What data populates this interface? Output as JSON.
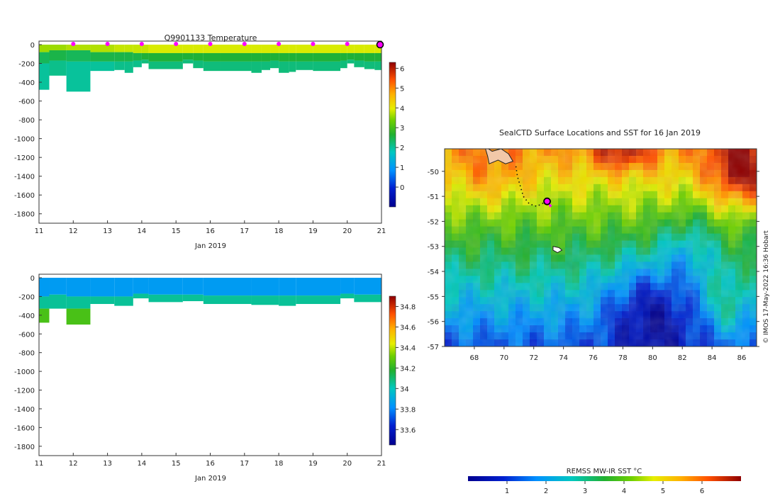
{
  "chart_data": [
    {
      "type": "heatmap",
      "title": "Q9901133  Temperature",
      "xlabel": "Jan 2019",
      "ylabel": "",
      "x_ticks": [
        "11",
        "12",
        "13",
        "14",
        "15",
        "16",
        "17",
        "18",
        "19",
        "20",
        "21"
      ],
      "y_ticks": [
        "0",
        "-200",
        "-400",
        "-600",
        "-800",
        "-1000",
        "-1200",
        "-1400",
        "-1600",
        "-1800"
      ],
      "xlim": [
        11,
        21
      ],
      "ylim": [
        -1900,
        0
      ],
      "colorbar": {
        "ticks": [
          "0",
          "1",
          "2",
          "3",
          "4",
          "5",
          "6"
        ],
        "range": [
          -1,
          6.3
        ]
      },
      "profile_times": [
        12,
        13,
        14,
        15,
        16,
        17,
        18,
        19,
        20
      ],
      "profiles": [
        {
          "t0": 11.0,
          "t1": 11.3,
          "depth": -480,
          "layers": [
            [
              0,
              -80,
              3.6
            ],
            [
              -80,
              -200,
              2.4
            ],
            [
              -200,
              -480,
              2.0
            ]
          ]
        },
        {
          "t0": 11.3,
          "t1": 11.8,
          "depth": -330,
          "layers": [
            [
              0,
              -60,
              3.6
            ],
            [
              -60,
              -170,
              2.5
            ],
            [
              -170,
              -330,
              2.1
            ]
          ]
        },
        {
          "t0": 11.8,
          "t1": 12.5,
          "depth": -500,
          "layers": [
            [
              0,
              -60,
              3.7
            ],
            [
              -60,
              -180,
              2.4
            ],
            [
              -180,
              -500,
              2.0
            ]
          ]
        },
        {
          "t0": 12.5,
          "t1": 13.2,
          "depth": -280,
          "layers": [
            [
              0,
              -80,
              3.7
            ],
            [
              -80,
              -180,
              2.5
            ],
            [
              -180,
              -280,
              2.0
            ]
          ]
        },
        {
          "t0": 13.2,
          "t1": 13.5,
          "depth": -270,
          "layers": [
            [
              0,
              -80,
              3.8
            ],
            [
              -80,
              -180,
              2.5
            ],
            [
              -180,
              -270,
              2.1
            ]
          ]
        },
        {
          "t0": 13.5,
          "t1": 13.75,
          "depth": -300,
          "layers": [
            [
              0,
              -80,
              3.8
            ],
            [
              -80,
              -180,
              2.5
            ],
            [
              -180,
              -300,
              2.1
            ]
          ]
        },
        {
          "t0": 13.75,
          "t1": 14.0,
          "depth": -240,
          "layers": [
            [
              0,
              -90,
              3.8
            ],
            [
              -90,
              -170,
              2.5
            ],
            [
              -170,
              -240,
              2.1
            ]
          ]
        },
        {
          "t0": 14.0,
          "t1": 14.2,
          "depth": -200,
          "layers": [
            [
              0,
              -90,
              3.8
            ],
            [
              -90,
              -160,
              2.6
            ],
            [
              -160,
              -200,
              2.2
            ]
          ]
        },
        {
          "t0": 14.2,
          "t1": 15.2,
          "depth": -260,
          "layers": [
            [
              0,
              -90,
              3.9
            ],
            [
              -90,
              -180,
              2.6
            ],
            [
              -180,
              -260,
              2.2
            ]
          ]
        },
        {
          "t0": 15.2,
          "t1": 15.5,
          "depth": -200,
          "layers": [
            [
              0,
              -90,
              3.9
            ],
            [
              -90,
              -160,
              2.6
            ],
            [
              -160,
              -200,
              2.2
            ]
          ]
        },
        {
          "t0": 15.5,
          "t1": 15.8,
          "depth": -250,
          "layers": [
            [
              0,
              -90,
              3.9
            ],
            [
              -90,
              -170,
              2.6
            ],
            [
              -170,
              -250,
              2.2
            ]
          ]
        },
        {
          "t0": 15.8,
          "t1": 16.3,
          "depth": -280,
          "layers": [
            [
              0,
              -90,
              3.9
            ],
            [
              -90,
              -180,
              2.6
            ],
            [
              -180,
              -280,
              2.2
            ]
          ]
        },
        {
          "t0": 16.3,
          "t1": 17.2,
          "depth": -280,
          "layers": [
            [
              0,
              -90,
              3.9
            ],
            [
              -90,
              -180,
              2.6
            ],
            [
              -180,
              -280,
              2.2
            ]
          ]
        },
        {
          "t0": 17.2,
          "t1": 17.5,
          "depth": -300,
          "layers": [
            [
              0,
              -90,
              3.9
            ],
            [
              -90,
              -180,
              2.6
            ],
            [
              -180,
              -300,
              2.2
            ]
          ]
        },
        {
          "t0": 17.5,
          "t1": 17.75,
          "depth": -270,
          "layers": [
            [
              0,
              -90,
              3.9
            ],
            [
              -90,
              -180,
              2.6
            ],
            [
              -180,
              -270,
              2.2
            ]
          ]
        },
        {
          "t0": 17.75,
          "t1": 18.0,
          "depth": -250,
          "layers": [
            [
              0,
              -90,
              3.9
            ],
            [
              -90,
              -170,
              2.6
            ],
            [
              -170,
              -250,
              2.2
            ]
          ]
        },
        {
          "t0": 18.0,
          "t1": 18.3,
          "depth": -300,
          "layers": [
            [
              0,
              -90,
              3.9
            ],
            [
              -90,
              -180,
              2.6
            ],
            [
              -180,
              -300,
              2.2
            ]
          ]
        },
        {
          "t0": 18.3,
          "t1": 18.5,
          "depth": -290,
          "layers": [
            [
              0,
              -90,
              3.9
            ],
            [
              -90,
              -180,
              2.6
            ],
            [
              -180,
              -290,
              2.2
            ]
          ]
        },
        {
          "t0": 18.5,
          "t1": 19.0,
          "depth": -270,
          "layers": [
            [
              0,
              -90,
              3.9
            ],
            [
              -90,
              -180,
              2.6
            ],
            [
              -180,
              -270,
              2.2
            ]
          ]
        },
        {
          "t0": 19.0,
          "t1": 19.8,
          "depth": -280,
          "layers": [
            [
              0,
              -90,
              3.9
            ],
            [
              -90,
              -180,
              2.6
            ],
            [
              -180,
              -280,
              2.2
            ]
          ]
        },
        {
          "t0": 19.8,
          "t1": 20.0,
          "depth": -250,
          "layers": [
            [
              0,
              -90,
              3.9
            ],
            [
              -90,
              -170,
              2.6
            ],
            [
              -170,
              -250,
              2.2
            ]
          ]
        },
        {
          "t0": 20.0,
          "t1": 20.2,
          "depth": -200,
          "layers": [
            [
              0,
              -90,
              3.9
            ],
            [
              -90,
              -160,
              2.6
            ],
            [
              -160,
              -200,
              2.2
            ]
          ]
        },
        {
          "t0": 20.2,
          "t1": 20.5,
          "depth": -240,
          "layers": [
            [
              0,
              -90,
              3.9
            ],
            [
              -90,
              -170,
              2.6
            ],
            [
              -170,
              -240,
              2.2
            ]
          ]
        },
        {
          "t0": 20.5,
          "t1": 20.8,
          "depth": -260,
          "layers": [
            [
              0,
              -90,
              3.9
            ],
            [
              -90,
              -180,
              2.6
            ],
            [
              -180,
              -260,
              2.2
            ]
          ]
        },
        {
          "t0": 20.8,
          "t1": 21.0,
          "depth": -270,
          "layers": [
            [
              0,
              -90,
              3.9
            ],
            [
              -90,
              -180,
              2.6
            ],
            [
              -180,
              -270,
              2.2
            ]
          ]
        }
      ]
    },
    {
      "type": "heatmap",
      "title": "",
      "xlabel": "Jan 2019",
      "ylabel": "",
      "x_ticks": [
        "11",
        "12",
        "13",
        "14",
        "15",
        "16",
        "17",
        "18",
        "19",
        "20",
        "21"
      ],
      "y_ticks": [
        "0",
        "-200",
        "-400",
        "-600",
        "-800",
        "-1000",
        "-1200",
        "-1400",
        "-1600",
        "-1800"
      ],
      "xlim": [
        11,
        21
      ],
      "ylim": [
        -1900,
        0
      ],
      "colorbar": {
        "ticks": [
          "33.6",
          "33.8",
          "34",
          "34.2",
          "34.4",
          "34.6",
          "34.8"
        ],
        "range": [
          33.45,
          34.9
        ]
      },
      "profiles": [
        {
          "t0": 11.0,
          "t1": 11.3,
          "depth": -480,
          "layers": [
            [
              0,
              -200,
              33.85
            ],
            [
              -200,
              -330,
              34.05
            ],
            [
              -330,
              -480,
              34.25
            ]
          ]
        },
        {
          "t0": 11.3,
          "t1": 11.8,
          "depth": -330,
          "layers": [
            [
              0,
              -180,
              33.85
            ],
            [
              -180,
              -330,
              34.05
            ]
          ]
        },
        {
          "t0": 11.8,
          "t1": 12.5,
          "depth": -500,
          "layers": [
            [
              0,
              -200,
              33.85
            ],
            [
              -200,
              -330,
              34.05
            ],
            [
              -330,
              -500,
              34.25
            ]
          ]
        },
        {
          "t0": 12.5,
          "t1": 13.2,
          "depth": -280,
          "layers": [
            [
              0,
              -200,
              33.85
            ],
            [
              -200,
              -280,
              34.05
            ]
          ]
        },
        {
          "t0": 13.2,
          "t1": 13.75,
          "depth": -300,
          "layers": [
            [
              0,
              -200,
              33.85
            ],
            [
              -200,
              -300,
              34.05
            ]
          ]
        },
        {
          "t0": 13.75,
          "t1": 14.2,
          "depth": -220,
          "layers": [
            [
              0,
              -170,
              33.85
            ],
            [
              -170,
              -220,
              34.05
            ]
          ]
        },
        {
          "t0": 14.2,
          "t1": 15.2,
          "depth": -260,
          "layers": [
            [
              0,
              -180,
              33.85
            ],
            [
              -180,
              -260,
              34.05
            ]
          ]
        },
        {
          "t0": 15.2,
          "t1": 15.8,
          "depth": -250,
          "layers": [
            [
              0,
              -180,
              33.85
            ],
            [
              -180,
              -250,
              34.05
            ]
          ]
        },
        {
          "t0": 15.8,
          "t1": 17.2,
          "depth": -280,
          "layers": [
            [
              0,
              -190,
              33.85
            ],
            [
              -190,
              -280,
              34.05
            ]
          ]
        },
        {
          "t0": 17.2,
          "t1": 18.0,
          "depth": -290,
          "layers": [
            [
              0,
              -190,
              33.85
            ],
            [
              -190,
              -290,
              34.05
            ]
          ]
        },
        {
          "t0": 18.0,
          "t1": 18.5,
          "depth": -300,
          "layers": [
            [
              0,
              -190,
              33.85
            ],
            [
              -190,
              -300,
              34.05
            ]
          ]
        },
        {
          "t0": 18.5,
          "t1": 19.8,
          "depth": -280,
          "layers": [
            [
              0,
              -190,
              33.85
            ],
            [
              -190,
              -280,
              34.05
            ]
          ]
        },
        {
          "t0": 19.8,
          "t1": 20.2,
          "depth": -220,
          "layers": [
            [
              0,
              -170,
              33.85
            ],
            [
              -170,
              -220,
              34.05
            ]
          ]
        },
        {
          "t0": 20.2,
          "t1": 21.0,
          "depth": -260,
          "layers": [
            [
              0,
              -180,
              33.85
            ],
            [
              -180,
              -260,
              34.05
            ]
          ]
        }
      ]
    },
    {
      "type": "heatmap",
      "title": "SealCTD Surface Locations and SST for 16 Jan 2019",
      "xlabel": "",
      "ylabel": "",
      "x_ticks": [
        "68",
        "70",
        "72",
        "74",
        "76",
        "78",
        "80",
        "82",
        "84",
        "86"
      ],
      "y_ticks": [
        "-50",
        "-51",
        "-52",
        "-53",
        "-54",
        "-55",
        "-56",
        "-57"
      ],
      "xlim": [
        66,
        87
      ],
      "ylim": [
        -57,
        -49.1
      ],
      "colorbar": {
        "label": "REMSS MW-IR SST °C",
        "ticks": [
          "1",
          "2",
          "3",
          "4",
          "5",
          "6"
        ],
        "range": [
          0.0,
          7.0
        ]
      },
      "credit": "© IMOS 17-May-2022 16:36 Hobart",
      "track": [
        [
          70.8,
          -49.8
        ],
        [
          70.9,
          -50.2
        ],
        [
          71.1,
          -50.6
        ],
        [
          71.3,
          -51.0
        ],
        [
          71.7,
          -51.3
        ],
        [
          72.2,
          -51.4
        ],
        [
          72.7,
          -51.25
        ],
        [
          72.9,
          -51.2
        ]
      ],
      "current_position": [
        72.9,
        -51.2
      ],
      "islands": [
        {
          "name": "",
          "points": [
            [
              68.7,
              -49.0
            ],
            [
              69.2,
              -49.2
            ],
            [
              69.8,
              -49.1
            ],
            [
              70.3,
              -49.3
            ],
            [
              70.6,
              -49.6
            ],
            [
              70.1,
              -49.7
            ],
            [
              69.6,
              -49.55
            ],
            [
              69.0,
              -49.7
            ],
            [
              68.9,
              -49.4
            ]
          ]
        },
        {
          "name": "",
          "points": [
            [
              73.3,
              -53.0
            ],
            [
              73.7,
              -53.05
            ],
            [
              73.9,
              -53.15
            ],
            [
              73.6,
              -53.25
            ],
            [
              73.3,
              -53.15
            ]
          ]
        }
      ]
    }
  ]
}
